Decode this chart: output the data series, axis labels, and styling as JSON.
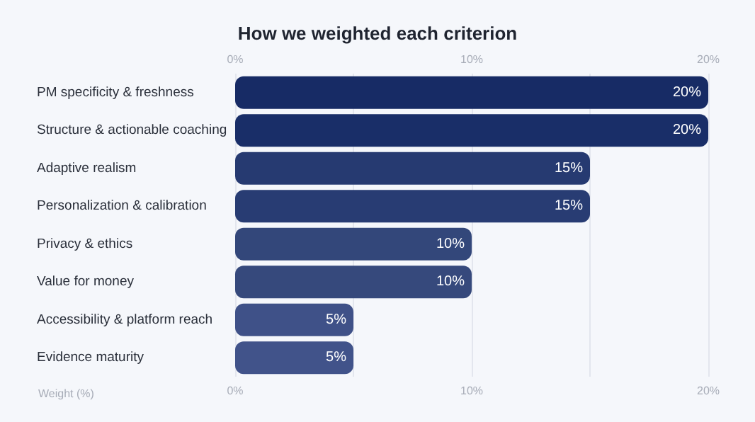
{
  "chart_data": {
    "type": "bar",
    "orientation": "horizontal",
    "title": "How we weighted each criterion",
    "xlabel": "Weight (%)",
    "categories": [
      "PM specificity & freshness",
      "Structure & actionable coaching",
      "Adaptive realism",
      "Personalization & calibration",
      "Privacy & ethics",
      "Value for money",
      "Accessibility & platform reach",
      "Evidence maturity"
    ],
    "values": [
      20,
      20,
      15,
      15,
      10,
      10,
      5,
      5
    ],
    "colors": [
      "#172b65",
      "#192e68",
      "#263a71",
      "#283c73",
      "#33477a",
      "#36497c",
      "#3f5188",
      "#41538a"
    ],
    "value_labels": [
      "20%",
      "20%",
      "15%",
      "15%",
      "10%",
      "10%",
      "5%",
      "5%"
    ],
    "xlim": [
      0,
      20
    ],
    "xticks": [
      {
        "value": 0,
        "label": "0%"
      },
      {
        "value": 5,
        "label": null
      },
      {
        "value": 10,
        "label": "10%"
      },
      {
        "value": 15,
        "label": null
      },
      {
        "value": 20,
        "label": "20%"
      }
    ],
    "x2lim": [
      0,
      20
    ],
    "x2ticks": [
      {
        "value": 0,
        "label": "0%"
      },
      {
        "value": 5,
        "label": null
      },
      {
        "value": 10,
        "label": "10%"
      },
      {
        "value": 15,
        "label": null
      },
      {
        "value": 20,
        "label": "20%"
      }
    ],
    "grid": "x"
  }
}
